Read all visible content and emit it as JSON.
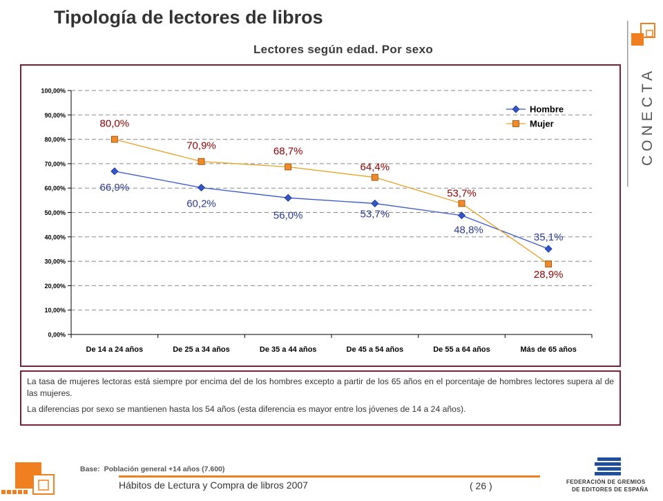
{
  "header": {
    "title": "Tipología de lectores de libros",
    "subtitle": "Lectores según edad. Por sexo"
  },
  "brand": {
    "logo_text": "CONECTA",
    "accent": "#f07f1f",
    "frame_color": "#7a1f35"
  },
  "chart_data": {
    "type": "line",
    "categories": [
      "De 14 a 24 años",
      "De 25 a 34 años",
      "De 35 a 44 años",
      "De 45 a 54 años",
      "De 55 a 64 años",
      "Más de 65 años"
    ],
    "y_ticks": [
      "0,00%",
      "10,00%",
      "20,00%",
      "30,00%",
      "40,00%",
      "50,00%",
      "60,00%",
      "70,00%",
      "80,00%",
      "90,00%",
      "100,00%"
    ],
    "ylim": [
      0,
      100
    ],
    "grid": true,
    "legend_position": "top-right",
    "series": [
      {
        "name": "Hombre",
        "values": [
          66.9,
          60.2,
          56.0,
          53.7,
          48.8,
          35.1
        ],
        "labels": [
          "66,9%",
          "60,2%",
          "56,0%",
          "53,7%",
          "48,8%",
          "35,1%"
        ],
        "color": "#3355cc",
        "label_color": "#2a3a8c",
        "marker": "diamond"
      },
      {
        "name": "Mujer",
        "values": [
          80.0,
          70.9,
          68.7,
          64.4,
          53.7,
          28.9
        ],
        "labels": [
          "80,0%",
          "70,9%",
          "68,7%",
          "64,4%",
          "53,7%",
          "28,9%"
        ],
        "color": "#e8a020",
        "label_color": "#8b0000",
        "marker": "square"
      }
    ]
  },
  "notes": {
    "p1": "La tasa de mujeres lectoras está siempre por encima del de los hombres excepto a partir de los 65 años en el porcentaje de hombres lectores supera al de las mujeres.",
    "p2": "La diferencias por sexo se mantienen hasta los 54 años (esta diferencia es mayor entre los jóvenes de 14 a 24 años)."
  },
  "footer": {
    "base_label": "Base:",
    "base_value": "Población general +14 años (7.600)",
    "publication": "Hábitos de Lectura y Compra de libros 2007",
    "page": "( 26 )",
    "federation_line1": "FEDERACIÓN DE GREMIOS",
    "federation_line2": "DE EDITORES DE ESPAÑA"
  }
}
